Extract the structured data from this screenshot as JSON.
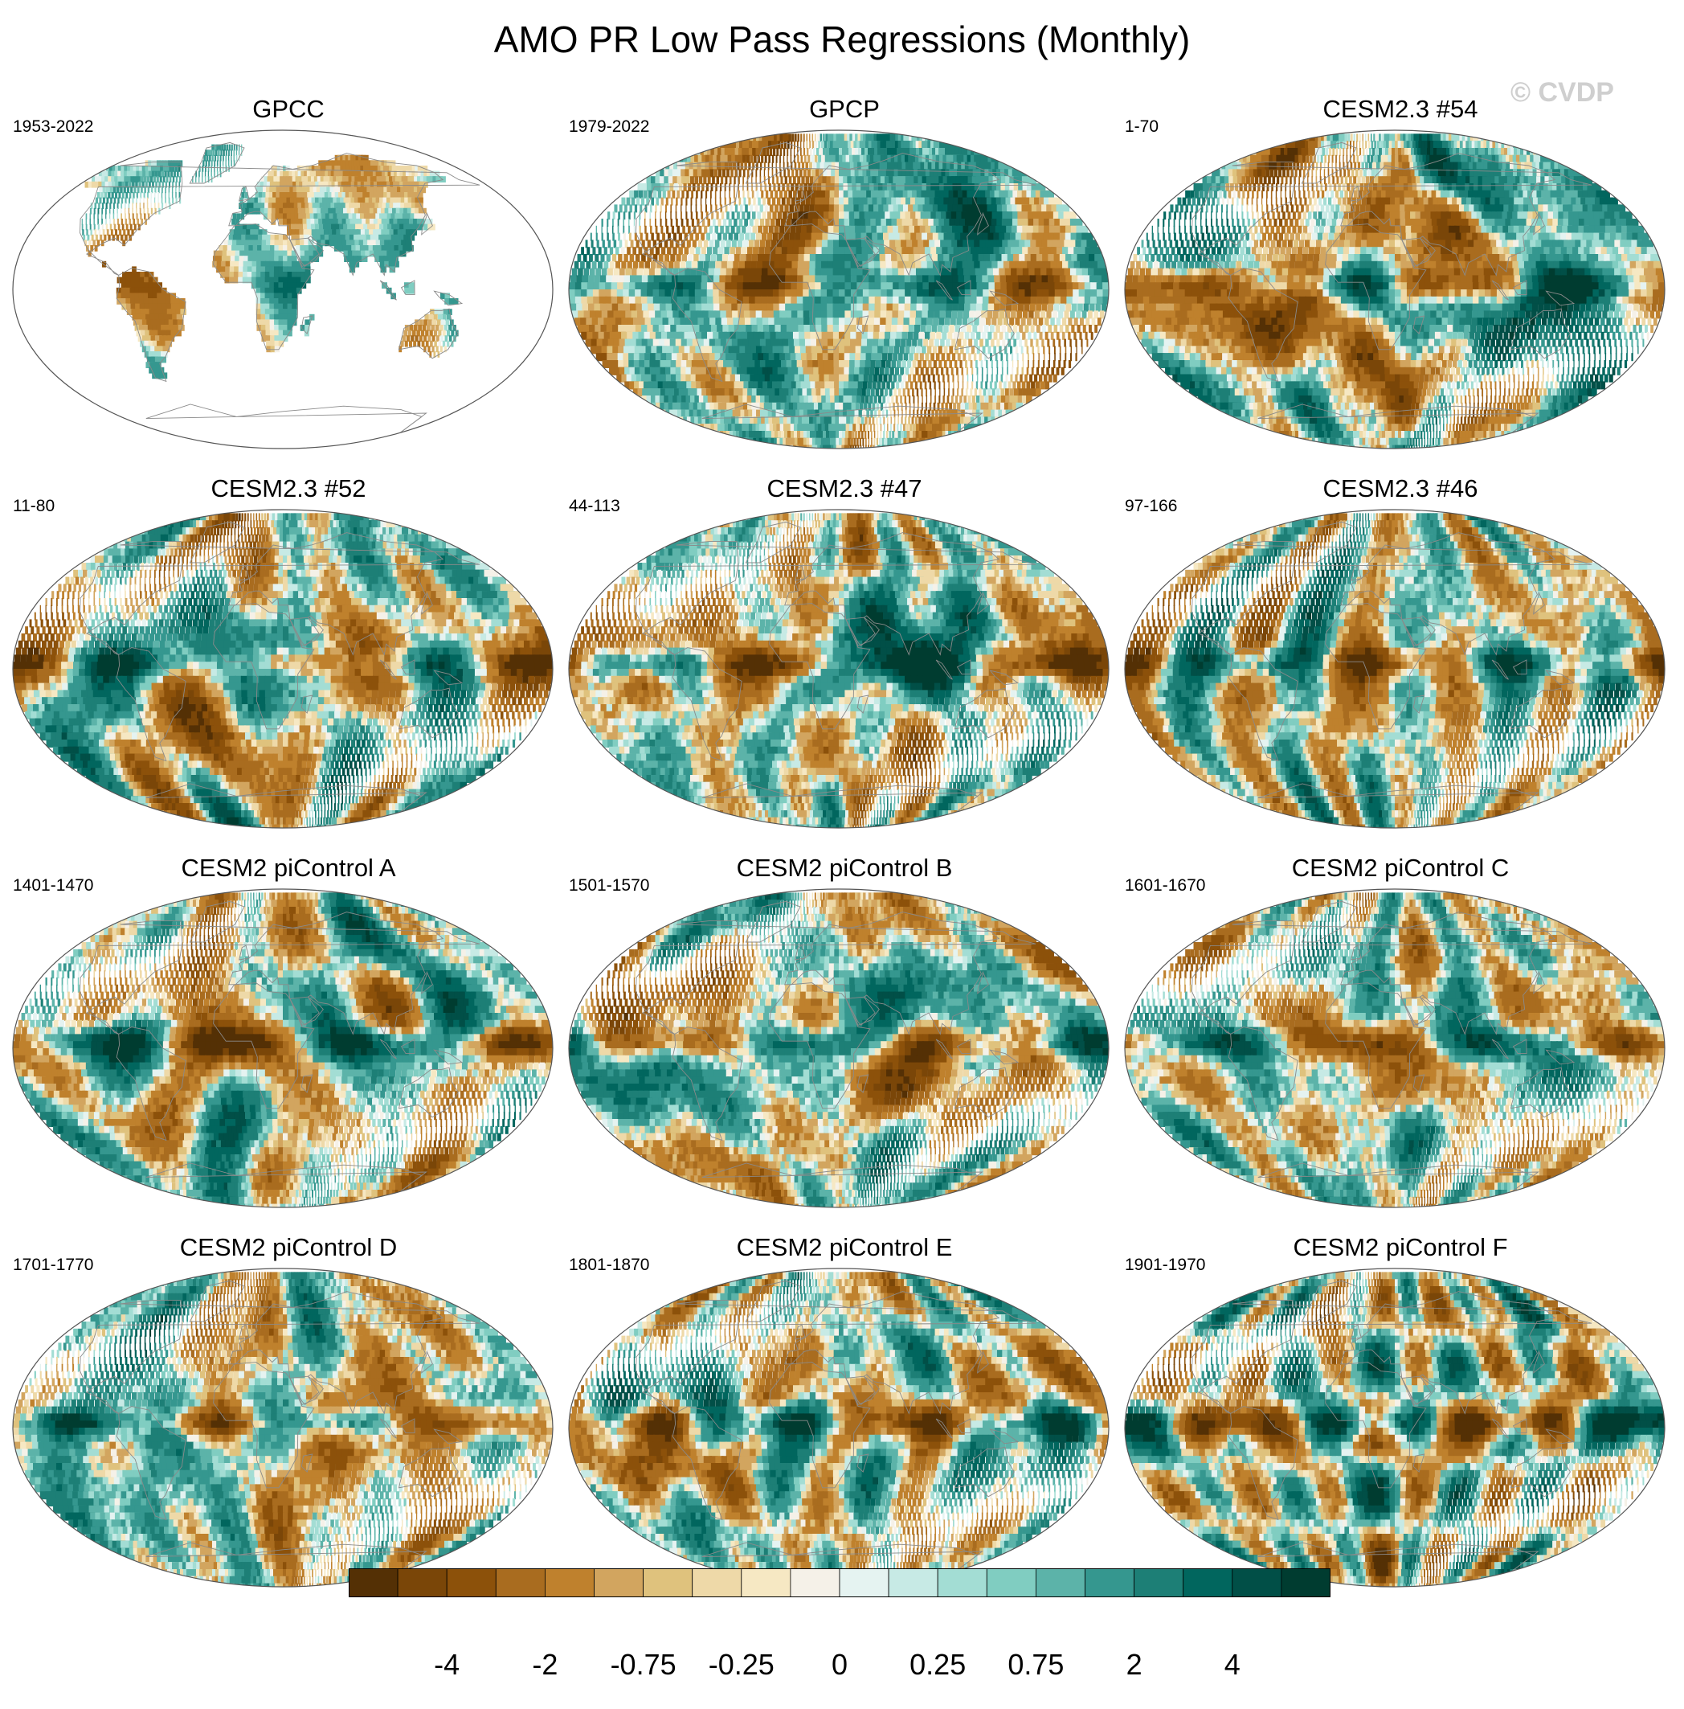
{
  "title": "AMO PR Low Pass Regressions (Monthly)",
  "watermark": "© CVDP",
  "panels": [
    {
      "title": "GPCC",
      "years": "1953-2022",
      "mode": "land",
      "seed": 11
    },
    {
      "title": "GPCP",
      "years": "1979-2022",
      "mode": "full",
      "seed": 23
    },
    {
      "title": "CESM2.3 #54",
      "years": "1-70",
      "mode": "full",
      "seed": 37
    },
    {
      "title": "CESM2.3 #52",
      "years": "11-80",
      "mode": "full",
      "seed": 41
    },
    {
      "title": "CESM2.3 #47",
      "years": "44-113",
      "mode": "full",
      "seed": 53
    },
    {
      "title": "CESM2.3 #46",
      "years": "97-166",
      "mode": "full",
      "seed": 67
    },
    {
      "title": "CESM2 piControl A",
      "years": "1401-1470",
      "mode": "full",
      "seed": 71
    },
    {
      "title": "CESM2 piControl B",
      "years": "1501-1570",
      "mode": "full",
      "seed": 83
    },
    {
      "title": "CESM2 piControl C",
      "years": "1601-1670",
      "mode": "full",
      "seed": 97
    },
    {
      "title": "CESM2 piControl D",
      "years": "1701-1770",
      "mode": "full",
      "seed": 101
    },
    {
      "title": "CESM2 piControl E",
      "years": "1801-1870",
      "mode": "full",
      "seed": 113
    },
    {
      "title": "CESM2 piControl F",
      "years": "1901-1970",
      "mode": "full",
      "seed": 127
    }
  ],
  "colorbar": {
    "colors": [
      "#543005",
      "#7a4608",
      "#8c510a",
      "#a96c1f",
      "#bf812d",
      "#d2a55f",
      "#dfc27d",
      "#eed9a8",
      "#f6e8c3",
      "#f5f1e8",
      "#e5f3f1",
      "#c7eae5",
      "#a3ddd4",
      "#80cdc1",
      "#5cb3a9",
      "#35978f",
      "#1d7f76",
      "#01665e",
      "#014f47",
      "#003c30"
    ],
    "labels": [
      {
        "text": "-4",
        "boundary": 2
      },
      {
        "text": "-2",
        "boundary": 4
      },
      {
        "text": "-0.75",
        "boundary": 6
      },
      {
        "text": "-0.25",
        "boundary": 8
      },
      {
        "text": "0",
        "boundary": 10
      },
      {
        "text": "0.25",
        "boundary": 12
      },
      {
        "text": "0.75",
        "boundary": 14
      },
      {
        "text": "2",
        "boundary": 16
      },
      {
        "text": "4",
        "boundary": 18
      }
    ]
  }
}
